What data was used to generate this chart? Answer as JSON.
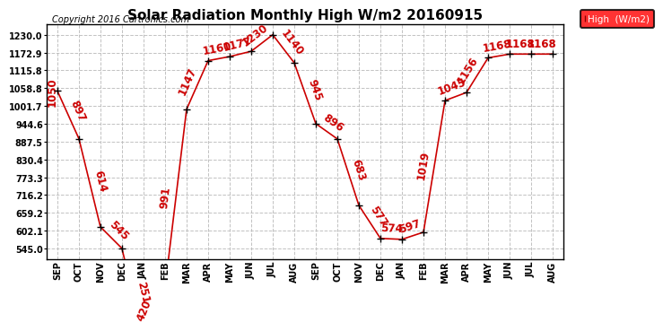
{
  "months": [
    "SEP",
    "OCT",
    "NOV",
    "DEC",
    "JAN",
    "FEB",
    "MAR",
    "APR",
    "MAY",
    "JUN",
    "JUL",
    "AUG",
    "SEP",
    "OCT",
    "NOV",
    "DEC",
    "JAN",
    "FEB",
    "MAR",
    "APR",
    "MAY",
    "JUN",
    "JUL",
    "AUG"
  ],
  "values": [
    1050,
    897,
    614,
    545,
    251,
    420,
    991,
    1147,
    1160,
    1177,
    1230,
    1140,
    945,
    896,
    683,
    577,
    574,
    597,
    1019,
    1045,
    1156,
    1168,
    1168,
    1168
  ],
  "title": "Solar Radiation Monthly High W/m2 20160915",
  "copyright": "Copyright 2016 Cartronics.com",
  "legend_label": "High  (W/m2)",
  "line_color": "#cc0000",
  "background_color": "#ffffff",
  "grid_color": "#bbbbbb",
  "yticks": [
    545.0,
    602.1,
    659.2,
    716.2,
    773.3,
    830.4,
    887.5,
    944.6,
    1001.7,
    1058.8,
    1115.8,
    1172.9,
    1230.0
  ],
  "title_fontsize": 11,
  "tick_fontsize": 7,
  "annotation_fontsize": 8.5
}
